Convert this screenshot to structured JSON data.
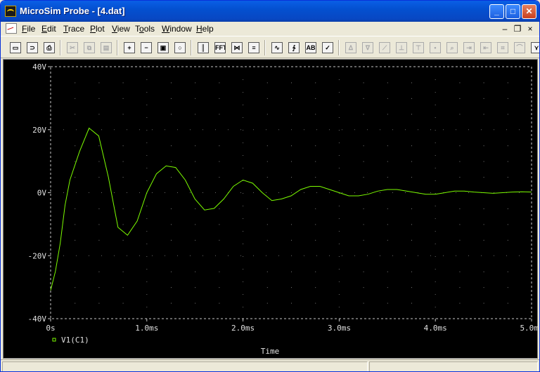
{
  "window": {
    "title": "MicroSim Probe - [4.dat]",
    "min_glyph": "_",
    "max_glyph": "□",
    "close_glyph": "✕"
  },
  "menu": {
    "items": [
      {
        "label": "File",
        "key": "F"
      },
      {
        "label": "Edit",
        "key": "E"
      },
      {
        "label": "Trace",
        "key": "T"
      },
      {
        "label": "Plot",
        "key": "P"
      },
      {
        "label": "View",
        "key": "V"
      },
      {
        "label": "Tools",
        "key": "o"
      },
      {
        "label": "Window",
        "key": "W"
      },
      {
        "label": "Help",
        "key": "H"
      }
    ],
    "doc_min": "–",
    "doc_restore": "❐",
    "doc_close": "×"
  },
  "toolbar": {
    "buttons": [
      {
        "name": "new-file",
        "glyph": "▭",
        "enabled": true
      },
      {
        "name": "open-file",
        "glyph": "⊃",
        "enabled": true
      },
      {
        "name": "print",
        "glyph": "⎙",
        "enabled": true
      },
      {
        "name": "cut",
        "glyph": "✂",
        "enabled": false
      },
      {
        "name": "copy",
        "glyph": "⧉",
        "enabled": false
      },
      {
        "name": "paste",
        "glyph": "▤",
        "enabled": false
      },
      {
        "name": "zoom-in",
        "glyph": "+",
        "enabled": true
      },
      {
        "name": "zoom-out",
        "glyph": "−",
        "enabled": true
      },
      {
        "name": "zoom-area",
        "glyph": "▣",
        "enabled": true
      },
      {
        "name": "zoom-fit",
        "glyph": "○",
        "enabled": true
      },
      {
        "name": "log-x-axis",
        "glyph": "║",
        "enabled": true
      },
      {
        "name": "fourier",
        "glyph": "FFT",
        "enabled": true
      },
      {
        "name": "performance-analysis",
        "glyph": "⋈",
        "enabled": true
      },
      {
        "name": "log-y-axis",
        "glyph": "≡",
        "enabled": true
      },
      {
        "name": "add-trace",
        "glyph": "∿",
        "enabled": true
      },
      {
        "name": "eval-goal-function",
        "glyph": "∱",
        "enabled": true
      },
      {
        "name": "text-label",
        "glyph": "AB",
        "enabled": true
      },
      {
        "name": "mark-data-points",
        "glyph": "✓",
        "enabled": true
      },
      {
        "name": "cursor-peak",
        "glyph": "ᐃ",
        "enabled": false
      },
      {
        "name": "cursor-trough",
        "glyph": "ᐁ",
        "enabled": false
      },
      {
        "name": "cursor-slope",
        "glyph": "⟋",
        "enabled": false
      },
      {
        "name": "cursor-min",
        "glyph": "⊥",
        "enabled": false
      },
      {
        "name": "cursor-max",
        "glyph": "⊤",
        "enabled": false
      },
      {
        "name": "cursor-point",
        "glyph": "•",
        "enabled": false
      },
      {
        "name": "cursor-search",
        "glyph": "⌕",
        "enabled": false
      },
      {
        "name": "cursor-next-transition",
        "glyph": "⇥",
        "enabled": false
      },
      {
        "name": "cursor-prev-transition",
        "glyph": "⇤",
        "enabled": false
      },
      {
        "name": "mark-label",
        "glyph": "⌗",
        "enabled": false
      },
      {
        "name": "display-control",
        "glyph": "⌒",
        "enabled": false
      },
      {
        "name": "toggle-cursor",
        "glyph": "⋎",
        "enabled": true
      }
    ]
  },
  "chart_data": {
    "type": "line",
    "xlabel": "Time",
    "ylabel": "",
    "xlim": [
      0,
      5.0
    ],
    "ylim": [
      -40,
      40
    ],
    "x_ticks": [
      0,
      1.0,
      2.0,
      3.0,
      4.0,
      5.0
    ],
    "x_tick_labels": [
      "0s",
      "1.0ms",
      "2.0ms",
      "3.0ms",
      "4.0ms",
      "5.0ms"
    ],
    "y_ticks": [
      -40,
      -20,
      0,
      20,
      40
    ],
    "y_tick_labels": [
      "-40V",
      "-20V",
      "0V",
      "20V",
      "40V"
    ],
    "grid": true,
    "legend_position": "bottom-left",
    "series": [
      {
        "name": "V1(C1)",
        "color": "#7CFC00",
        "x": [
          0,
          0.05,
          0.1,
          0.15,
          0.2,
          0.3,
          0.4,
          0.5,
          0.6,
          0.7,
          0.8,
          0.9,
          1.0,
          1.1,
          1.2,
          1.3,
          1.4,
          1.5,
          1.6,
          1.7,
          1.8,
          1.9,
          2.0,
          2.1,
          2.2,
          2.3,
          2.4,
          2.5,
          2.6,
          2.7,
          2.8,
          2.9,
          3.0,
          3.1,
          3.2,
          3.3,
          3.4,
          3.5,
          3.6,
          3.7,
          3.8,
          3.9,
          4.0,
          4.1,
          4.2,
          4.3,
          4.4,
          4.5,
          4.6,
          4.7,
          4.8,
          4.9,
          5.0
        ],
        "values": [
          -31,
          -25,
          -16,
          -4,
          4,
          13,
          20.5,
          18,
          5,
          -11,
          -13.5,
          -9,
          0,
          6,
          8.5,
          8,
          4,
          -2,
          -5.5,
          -5,
          -2,
          2,
          4,
          3,
          0,
          -2.5,
          -2,
          -1,
          1,
          2,
          2,
          1,
          0,
          -1,
          -1,
          -0.5,
          0.5,
          1,
          1,
          0.5,
          0,
          -0.5,
          -0.5,
          0,
          0.5,
          0.5,
          0.2,
          0,
          -0.2,
          0,
          0.2,
          0.3,
          0.2
        ]
      }
    ]
  },
  "status": {
    "left": "",
    "right": ""
  }
}
